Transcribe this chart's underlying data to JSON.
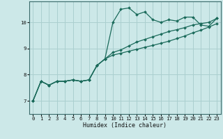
{
  "xlabel": "Humidex (Indice chaleur)",
  "background_color": "#cce8e8",
  "grid_color": "#aacfcf",
  "line_color": "#1a6a5a",
  "xlim": [
    -0.5,
    23.5
  ],
  "ylim": [
    6.5,
    10.8
  ],
  "x_ticks": [
    0,
    1,
    2,
    3,
    4,
    5,
    6,
    7,
    8,
    9,
    10,
    11,
    12,
    13,
    14,
    15,
    16,
    17,
    18,
    19,
    20,
    21,
    22,
    23
  ],
  "y_ticks": [
    7,
    8,
    9,
    10
  ],
  "humidex_x": [
    0,
    1,
    2,
    3,
    4,
    5,
    6,
    7,
    8,
    9,
    10,
    11,
    12,
    13,
    14,
    15,
    16,
    17,
    18,
    19,
    20,
    21,
    22,
    23
  ],
  "curve1_y": [
    7.0,
    7.75,
    7.6,
    7.75,
    7.75,
    7.8,
    7.75,
    7.8,
    8.35,
    8.6,
    10.0,
    10.5,
    10.55,
    10.3,
    10.4,
    10.1,
    10.0,
    10.1,
    10.05,
    10.2,
    10.2,
    9.9,
    9.85,
    10.15
  ],
  "curve2_y": [
    7.0,
    7.75,
    7.6,
    7.75,
    7.75,
    7.8,
    7.75,
    7.8,
    8.35,
    8.6,
    8.85,
    8.95,
    9.1,
    9.25,
    9.35,
    9.45,
    9.55,
    9.65,
    9.72,
    9.8,
    9.9,
    9.95,
    10.0,
    10.15
  ],
  "curve3_y": [
    7.0,
    7.75,
    7.6,
    7.75,
    7.75,
    7.8,
    7.75,
    7.8,
    8.35,
    8.6,
    8.75,
    8.82,
    8.9,
    8.97,
    9.05,
    9.12,
    9.2,
    9.28,
    9.38,
    9.48,
    9.6,
    9.7,
    9.82,
    9.95
  ]
}
